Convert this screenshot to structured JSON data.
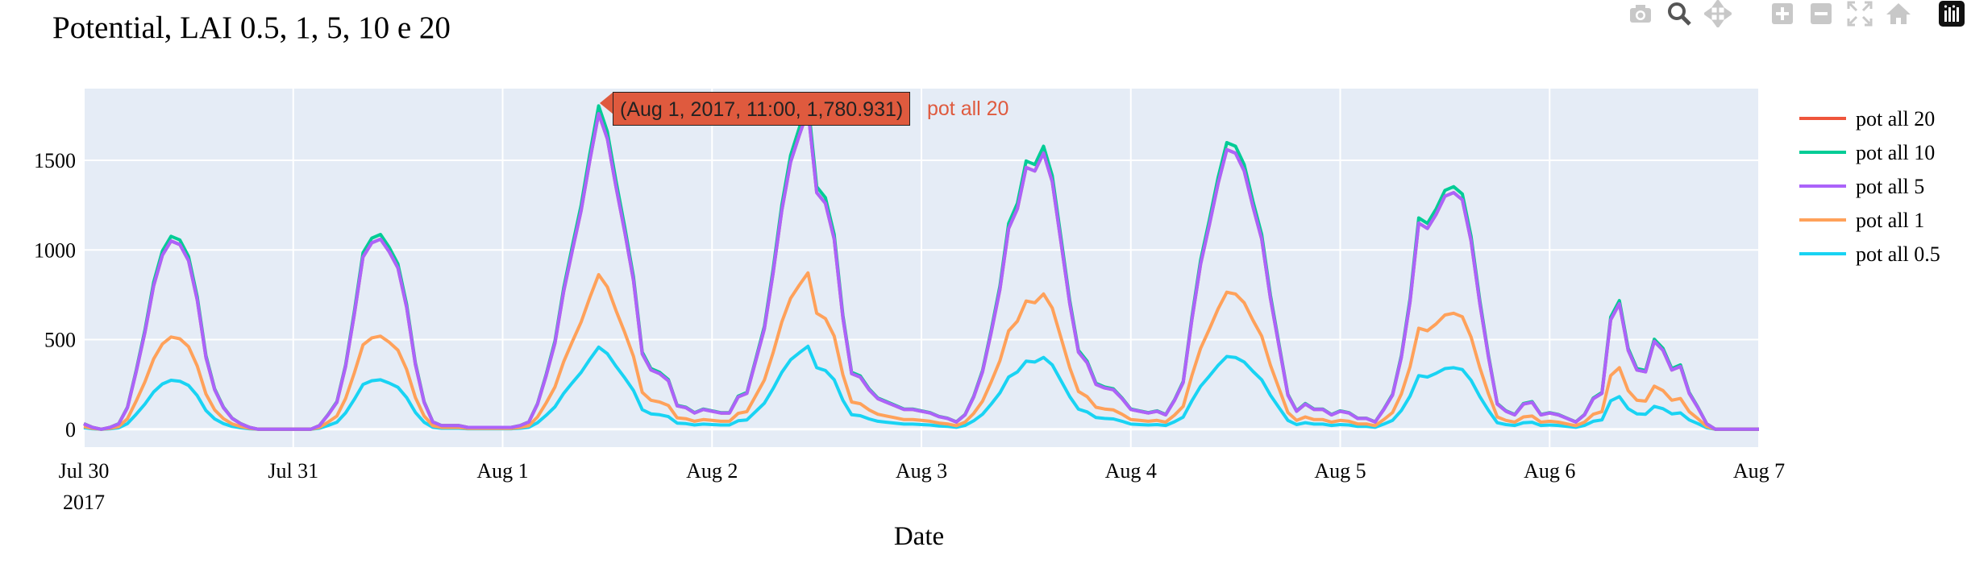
{
  "chart_data": {
    "type": "line",
    "title": "Potential, LAI 0.5, 1, 5, 10 e 20",
    "xlabel": "Date",
    "ylabel": "",
    "x_range": [
      "2017-07-30 00:00",
      "2017-08-07 00:00"
    ],
    "ylim": [
      -100,
      1900
    ],
    "x_ticks": [
      {
        "date": "2017-07-30",
        "label": "Jul 30",
        "sublabel": "2017"
      },
      {
        "date": "2017-07-31",
        "label": "Jul 31",
        "sublabel": ""
      },
      {
        "date": "2017-08-01",
        "label": "Aug 1",
        "sublabel": ""
      },
      {
        "date": "2017-08-02",
        "label": "Aug 2",
        "sublabel": ""
      },
      {
        "date": "2017-08-03",
        "label": "Aug 3",
        "sublabel": ""
      },
      {
        "date": "2017-08-04",
        "label": "Aug 4",
        "sublabel": ""
      },
      {
        "date": "2017-08-05",
        "label": "Aug 5",
        "sublabel": ""
      },
      {
        "date": "2017-08-06",
        "label": "Aug 6",
        "sublabel": ""
      },
      {
        "date": "2017-08-07",
        "label": "Aug 7",
        "sublabel": ""
      }
    ],
    "y_ticks": [
      0,
      500,
      1000,
      1500
    ],
    "grid": true,
    "legend_position": "right",
    "series": [
      {
        "name": "pot all 20",
        "color": "#ef553b"
      },
      {
        "name": "pot all 10",
        "color": "#00cc96"
      },
      {
        "name": "pot all 5",
        "color": "#ab63fa"
      },
      {
        "name": "pot all 1",
        "color": "#ffa15a"
      },
      {
        "name": "pot all 0.5",
        "color": "#19d3f3"
      }
    ],
    "daily_shapes": [
      {
        "date": "2017-07-30",
        "values": [
          30,
          10,
          0,
          10,
          30,
          120,
          320,
          540,
          800,
          970,
          1050,
          1030,
          940,
          720,
          400,
          220,
          120,
          60,
          30,
          10,
          0,
          0,
          0,
          0
        ]
      },
      {
        "date": "2017-07-31",
        "values": [
          0,
          0,
          0,
          20,
          80,
          150,
          350,
          640,
          960,
          1040,
          1060,
          990,
          900,
          680,
          360,
          150,
          40,
          20,
          20,
          20,
          10,
          10,
          10,
          10
        ]
      },
      {
        "date": "2017-08-01",
        "values": [
          10,
          10,
          20,
          40,
          140,
          300,
          480,
          770,
          1000,
          1220,
          1500,
          1760,
          1620,
          1350,
          1100,
          830,
          420,
          330,
          310,
          270,
          130,
          120,
          90,
          110
        ]
      },
      {
        "date": "2017-08-02",
        "values": [
          100,
          90,
          90,
          180,
          200,
          380,
          560,
          870,
          1220,
          1490,
          1640,
          1780,
          1320,
          1260,
          1060,
          620,
          310,
          290,
          220,
          170,
          150,
          130,
          110,
          110
        ]
      },
      {
        "date": "2017-08-03",
        "values": [
          100,
          90,
          70,
          60,
          40,
          80,
          180,
          320,
          540,
          780,
          1120,
          1230,
          1460,
          1440,
          1540,
          1380,
          1040,
          700,
          430,
          370,
          250,
          230,
          220,
          170
        ]
      },
      {
        "date": "2017-08-04",
        "values": [
          110,
          100,
          90,
          100,
          80,
          160,
          260,
          610,
          920,
          1140,
          1370,
          1560,
          1540,
          1440,
          1240,
          1060,
          730,
          460,
          190,
          100,
          140,
          110,
          110,
          80
        ]
      },
      {
        "date": "2017-08-05",
        "values": [
          100,
          90,
          60,
          60,
          40,
          110,
          190,
          400,
          710,
          1150,
          1120,
          1200,
          1300,
          1320,
          1280,
          1050,
          700,
          400,
          140,
          100,
          80,
          140,
          150,
          80
        ]
      },
      {
        "date": "2017-08-06",
        "values": [
          90,
          80,
          60,
          40,
          80,
          170,
          200,
          610,
          700,
          440,
          330,
          320,
          490,
          440,
          330,
          350,
          200,
          120,
          30,
          0,
          0,
          0,
          0,
          0
        ]
      }
    ],
    "series_scale_of_lai5": {
      "pot all 20": 1.0,
      "pot all 10": 1.025,
      "pot all 5": 1.0,
      "pot all 1": 0.49,
      "pot all 0.5": 0.26
    },
    "hover": {
      "label": "(Aug 1, 2017, 11:00, 1,780.931)",
      "series": "pot all 20",
      "x": "2017-08-01 11:00",
      "y": 1780.931
    }
  },
  "modebar_icons": [
    "camera-icon",
    "zoom-icon",
    "pan-icon",
    "zoom-in-icon",
    "zoom-out-icon",
    "autoscale-icon",
    "reset-axes-icon",
    "plotly-logo-icon"
  ]
}
